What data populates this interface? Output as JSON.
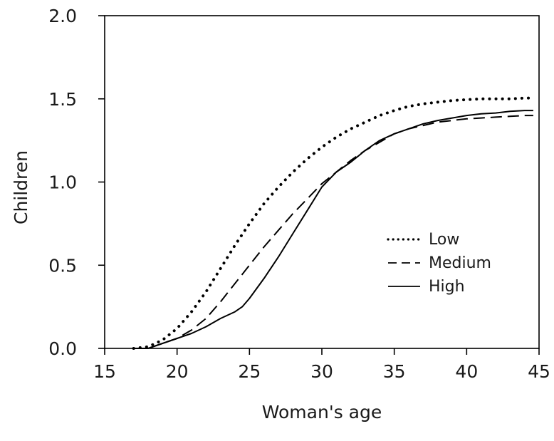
{
  "chart_data": {
    "type": "line",
    "title": "",
    "xlabel": "Woman's age",
    "ylabel": "Children",
    "xlim": [
      15,
      45
    ],
    "ylim": [
      0,
      2.0
    ],
    "x_ticks": [
      "15",
      "20",
      "25",
      "30",
      "35",
      "40",
      "45"
    ],
    "y_ticks": [
      "0.0",
      "0.5",
      "1.0",
      "1.5",
      "2.0"
    ],
    "grid": false,
    "legend_position": "center-right",
    "series": [
      {
        "name": "Low",
        "style": "dotted",
        "points": [
          [
            17,
            0.0
          ],
          [
            18,
            0.01
          ],
          [
            19,
            0.05
          ],
          [
            20,
            0.12
          ],
          [
            21,
            0.22
          ],
          [
            22,
            0.34
          ],
          [
            23,
            0.48
          ],
          [
            24,
            0.62
          ],
          [
            25,
            0.75
          ],
          [
            26,
            0.87
          ],
          [
            27,
            0.97
          ],
          [
            28,
            1.06
          ],
          [
            29,
            1.14
          ],
          [
            30,
            1.21
          ],
          [
            31,
            1.27
          ],
          [
            32,
            1.32
          ],
          [
            33,
            1.36
          ],
          [
            34,
            1.4
          ],
          [
            35,
            1.43
          ],
          [
            36,
            1.455
          ],
          [
            37,
            1.47
          ],
          [
            38,
            1.48
          ],
          [
            39,
            1.49
          ],
          [
            40,
            1.495
          ],
          [
            41,
            1.5
          ],
          [
            42,
            1.5
          ],
          [
            43,
            1.5
          ],
          [
            44,
            1.505
          ],
          [
            44.6,
            1.505
          ]
        ]
      },
      {
        "name": "Medium",
        "style": "dashed",
        "points": [
          [
            17,
            0.0
          ],
          [
            18,
            0.0
          ],
          [
            19,
            0.03
          ],
          [
            20,
            0.06
          ],
          [
            21,
            0.11
          ],
          [
            22,
            0.18
          ],
          [
            23,
            0.28
          ],
          [
            24,
            0.39
          ],
          [
            25,
            0.5
          ],
          [
            26,
            0.61
          ],
          [
            27,
            0.71
          ],
          [
            28,
            0.81
          ],
          [
            29,
            0.9
          ],
          [
            30,
            0.99
          ],
          [
            31,
            1.06
          ],
          [
            32,
            1.13
          ],
          [
            33,
            1.19
          ],
          [
            34,
            1.24
          ],
          [
            35,
            1.29
          ],
          [
            36,
            1.32
          ],
          [
            37,
            1.34
          ],
          [
            38,
            1.36
          ],
          [
            39,
            1.37
          ],
          [
            40,
            1.38
          ],
          [
            41,
            1.385
          ],
          [
            42,
            1.39
          ],
          [
            43,
            1.395
          ],
          [
            44,
            1.4
          ],
          [
            44.6,
            1.4
          ]
        ]
      },
      {
        "name": "High",
        "style": "solid",
        "points": [
          [
            17,
            0.0
          ],
          [
            18,
            0.0
          ],
          [
            19,
            0.03
          ],
          [
            20,
            0.06
          ],
          [
            21,
            0.09
          ],
          [
            22,
            0.13
          ],
          [
            23,
            0.18
          ],
          [
            24,
            0.22
          ],
          [
            24.5,
            0.25
          ],
          [
            25,
            0.3
          ],
          [
            26,
            0.42
          ],
          [
            27,
            0.55
          ],
          [
            28,
            0.69
          ],
          [
            29,
            0.83
          ],
          [
            30,
            0.97
          ],
          [
            31,
            1.06
          ],
          [
            32,
            1.12
          ],
          [
            33,
            1.19
          ],
          [
            34,
            1.25
          ],
          [
            35,
            1.29
          ],
          [
            36,
            1.32
          ],
          [
            37,
            1.35
          ],
          [
            38,
            1.37
          ],
          [
            39,
            1.385
          ],
          [
            40,
            1.4
          ],
          [
            41,
            1.41
          ],
          [
            42,
            1.415
          ],
          [
            43,
            1.425
          ],
          [
            44,
            1.43
          ],
          [
            44.6,
            1.43
          ]
        ]
      }
    ]
  }
}
